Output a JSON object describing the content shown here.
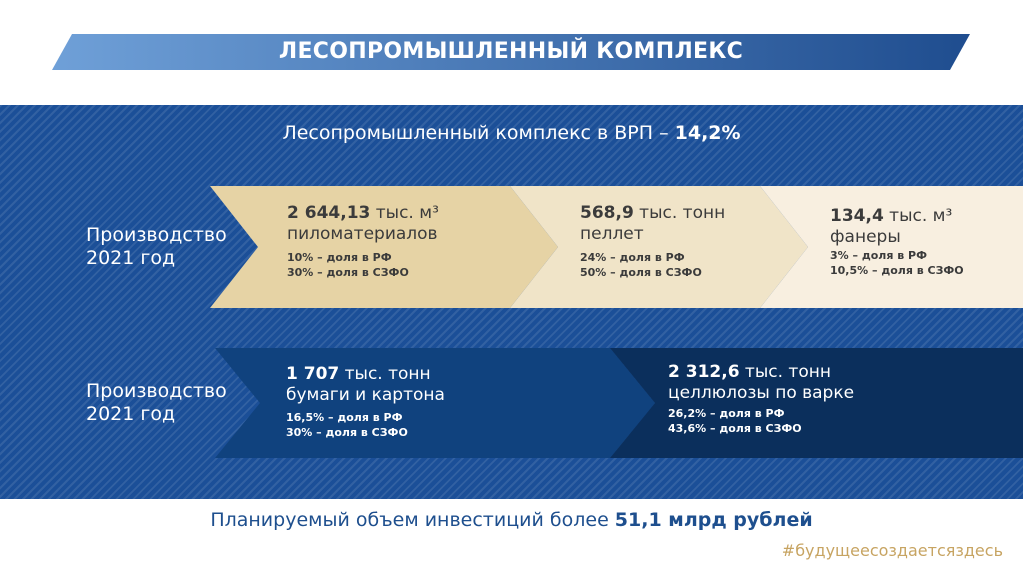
{
  "header": {
    "title": "ЛЕСОПРОМЫШЛЕННЫЙ КОМПЛЕКС"
  },
  "grp": {
    "text": "Лесопромышленный комплекс в ВРП – ",
    "value": "14,2%"
  },
  "row1": {
    "label1": "Производство",
    "label2": "2021 год",
    "cards": [
      {
        "value": "2 644,13",
        "unit": " тыс. м³",
        "item": "пиломатериалов",
        "share_rf": "10% – доля в РФ",
        "share_szfo": "30% – доля в СЗФО"
      },
      {
        "value": "568,9",
        "unit": " тыс. тонн",
        "item": "пеллет",
        "share_rf": "24% – доля в РФ",
        "share_szfo": "50% – доля в СЗФО"
      },
      {
        "value": "134,4",
        "unit": " тыс. м³",
        "item": "фанеры",
        "share_rf": "3% – доля в РФ",
        "share_szfo": "10,5% – доля в СЗФО"
      }
    ]
  },
  "row2": {
    "label1": "Производство",
    "label2": "2021 год",
    "cards": [
      {
        "value": "1 707",
        "unit": " тыс. тонн",
        "item": "бумаги и картона",
        "share_rf": "16,5% – доля в РФ",
        "share_szfo": "30% – доля в СЗФО"
      },
      {
        "value": "2 312,6",
        "unit": " тыс. тонн",
        "item": "целлюлозы по варке",
        "share_rf": "26,2% – доля в РФ",
        "share_szfo": "43,6% – доля в СЗФО"
      }
    ]
  },
  "footer": {
    "text": "Планируемый объем инвестиций более ",
    "value": "51,1 млрд рублей"
  },
  "hashtag": "#будущеесоздаетсяздесь",
  "colors": {
    "banner_start": "#6fa0d8",
    "banner_end": "#1f4d8f",
    "band": "#1b4f98",
    "card1": "#e6d3a5",
    "card2": "#f0e4c8",
    "card3": "#f8efe0",
    "card4": "#10427e",
    "card5": "#0b2f5c",
    "accent": "#c7a462"
  }
}
